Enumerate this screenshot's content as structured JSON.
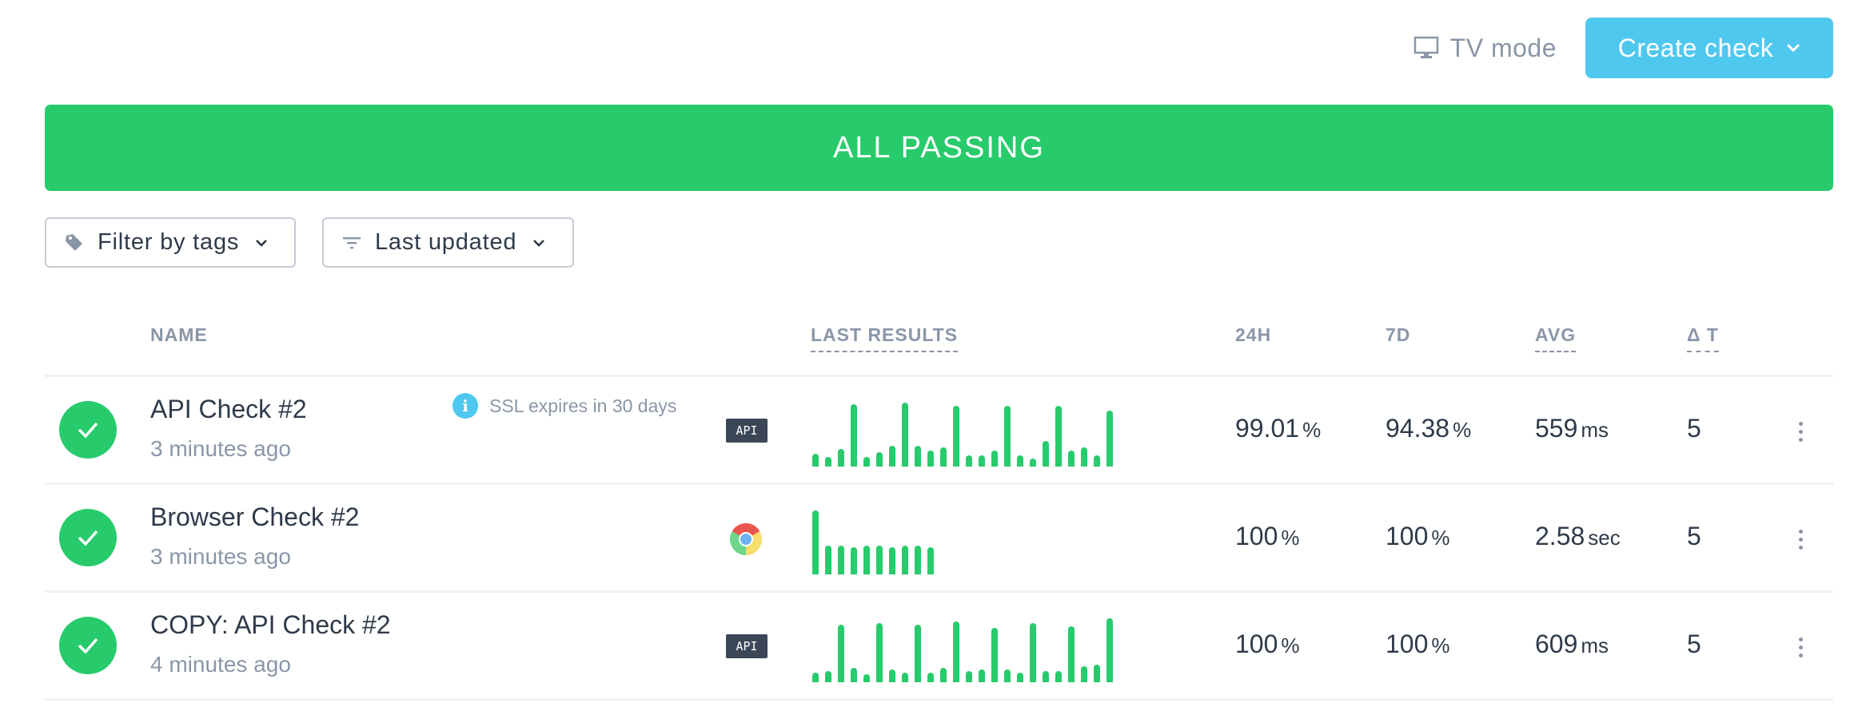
{
  "topbar": {
    "tv_mode_label": "TV mode",
    "create_check_label": "Create check"
  },
  "banner": {
    "label": "ALL PASSING",
    "color": "#27cb6b"
  },
  "filters": {
    "tags_label": "Filter by tags",
    "sort_label": "Last updated"
  },
  "table": {
    "headers": {
      "name": "NAME",
      "last_results": "LAST RESULTS",
      "h24": "24H",
      "d7": "7D",
      "avg": "AVG",
      "delta_t": "Δ T"
    },
    "rows": [
      {
        "name": "API Check #2",
        "ago": "3 minutes ago",
        "notice": "SSL expires in 30 days",
        "type": "API",
        "h24_value": "99.01",
        "h24_unit": "%",
        "d7_value": "94.38",
        "d7_unit": "%",
        "avg_value": "559",
        "avg_unit": "ms",
        "delta_t": "5",
        "bars": [
          16,
          12,
          22,
          78,
          12,
          18,
          26,
          80,
          26,
          20,
          24,
          76,
          14,
          14,
          20,
          76,
          14,
          10,
          32,
          76,
          20,
          24,
          14,
          70
        ]
      },
      {
        "name": "Browser Check #2",
        "ago": "3 minutes ago",
        "type": "chrome",
        "h24_value": "100",
        "h24_unit": "%",
        "d7_value": "100",
        "d7_unit": "%",
        "avg_value": "2.58",
        "avg_unit": "sec",
        "delta_t": "5",
        "bars": [
          80,
          36,
          36,
          34,
          36,
          36,
          34,
          36,
          36,
          34
        ]
      },
      {
        "name": "COPY: API Check #2",
        "ago": "4 minutes ago",
        "type": "API",
        "h24_value": "100",
        "h24_unit": "%",
        "d7_value": "100",
        "d7_unit": "%",
        "avg_value": "609",
        "avg_unit": "ms",
        "delta_t": "5",
        "bars": [
          12,
          14,
          72,
          18,
          10,
          74,
          16,
          12,
          72,
          12,
          18,
          76,
          14,
          16,
          68,
          16,
          12,
          74,
          14,
          14,
          70,
          20,
          22,
          80
        ]
      }
    ]
  },
  "colors": {
    "accent": "#4fc8f0",
    "success": "#27cb6b",
    "text": "#2f3a4a",
    "muted": "#8a96a8"
  }
}
